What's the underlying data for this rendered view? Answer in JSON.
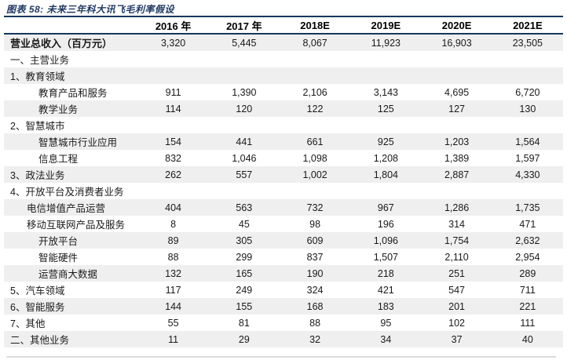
{
  "title": "图表 58: 未来三年科大讯飞毛利率假设",
  "colors": {
    "rule_navy": "#17375D",
    "title_navy": "#1F3864",
    "shaded_row": "#EFEFEF",
    "bottom_rule_gray": "#DCDCDC"
  },
  "table": {
    "columns": [
      "",
      "2016 年",
      "2017 年",
      "2018E",
      "2019E",
      "2020E",
      "2021E"
    ],
    "rows": [
      {
        "label": "营业总收入（百万元）",
        "indent": 0,
        "bold": true,
        "values": [
          "3,320",
          "5,445",
          "8,067",
          "11,923",
          "16,903",
          "23,505"
        ]
      },
      {
        "label": "一、主营业务",
        "indent": 0,
        "bold": false,
        "values": [
          "",
          "",
          "",
          "",
          "",
          ""
        ]
      },
      {
        "label": "1、教育领域",
        "indent": 0,
        "bold": false,
        "values": [
          "",
          "",
          "",
          "",
          "",
          ""
        ]
      },
      {
        "label": "教育产品和服务",
        "indent": 2,
        "bold": false,
        "values": [
          "911",
          "1,390",
          "2,106",
          "3,143",
          "4,695",
          "6,720"
        ]
      },
      {
        "label": "教学业务",
        "indent": 2,
        "bold": false,
        "values": [
          "114",
          "120",
          "122",
          "125",
          "127",
          "130"
        ]
      },
      {
        "label": "2、智慧城市",
        "indent": 0,
        "bold": false,
        "values": [
          "",
          "",
          "",
          "",
          "",
          ""
        ]
      },
      {
        "label": "智慧城市行业应用",
        "indent": 2,
        "bold": false,
        "values": [
          "154",
          "441",
          "661",
          "925",
          "1,203",
          "1,564"
        ]
      },
      {
        "label": "信息工程",
        "indent": 2,
        "bold": false,
        "values": [
          "832",
          "1,046",
          "1,098",
          "1,208",
          "1,389",
          "1,597"
        ]
      },
      {
        "label": "3、政法业务",
        "indent": 0,
        "bold": false,
        "values": [
          "262",
          "557",
          "1,002",
          "1,804",
          "2,887",
          "4,330"
        ]
      },
      {
        "label": "4、开放平台及消费者业务",
        "indent": 0,
        "bold": false,
        "values": [
          "",
          "",
          "",
          "",
          "",
          ""
        ]
      },
      {
        "label": "电信增值产品运营",
        "indent": 1,
        "bold": false,
        "values": [
          "404",
          "563",
          "732",
          "967",
          "1,286",
          "1,735"
        ]
      },
      {
        "label": "移动互联网产品及服务",
        "indent": 1,
        "bold": false,
        "values": [
          "8",
          "45",
          "98",
          "196",
          "314",
          "471"
        ]
      },
      {
        "label": "开放平台",
        "indent": 2,
        "bold": false,
        "values": [
          "89",
          "305",
          "609",
          "1,096",
          "1,754",
          "2,632"
        ]
      },
      {
        "label": "智能硬件",
        "indent": 2,
        "bold": false,
        "values": [
          "88",
          "299",
          "837",
          "1,507",
          "2,110",
          "2,954"
        ]
      },
      {
        "label": "运营商大数据",
        "indent": 2,
        "bold": false,
        "values": [
          "132",
          "165",
          "190",
          "218",
          "251",
          "289"
        ]
      },
      {
        "label": "5、汽车领域",
        "indent": 0,
        "bold": false,
        "values": [
          "117",
          "249",
          "324",
          "421",
          "547",
          "711"
        ]
      },
      {
        "label": "6、智能服务",
        "indent": 0,
        "bold": false,
        "values": [
          "144",
          "155",
          "168",
          "183",
          "201",
          "221"
        ]
      },
      {
        "label": "7、其他",
        "indent": 0,
        "bold": false,
        "values": [
          "55",
          "81",
          "88",
          "95",
          "102",
          "111"
        ]
      },
      {
        "label": "二、其他业务",
        "indent": 0,
        "bold": false,
        "values": [
          "11",
          "29",
          "32",
          "34",
          "37",
          "40"
        ]
      }
    ]
  }
}
